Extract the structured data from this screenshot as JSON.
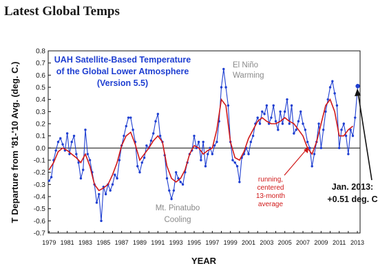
{
  "page": {
    "title": "Latest Global Temps"
  },
  "chart_data": {
    "type": "line",
    "title_lines": [
      "UAH Satellite-Based Temperature",
      "of the Global Lower Atmosphere",
      "(Version 5.5)"
    ],
    "xlabel": "YEAR",
    "ylabel": "T Departure from '81-'10 Avg. (deg. C.)",
    "xlim": [
      1978.9,
      2013.3
    ],
    "ylim": [
      -0.7,
      0.8
    ],
    "y_ticks": [
      -0.7,
      -0.6,
      -0.5,
      -0.4,
      -0.3,
      -0.2,
      -0.1,
      0.0,
      0.1,
      0.2,
      0.3,
      0.4,
      0.5,
      0.6,
      0.7,
      0.8
    ],
    "y_tick_labels": [
      "-0.7",
      "-0.6",
      "-0.5",
      "-0.4",
      "-0.3",
      "-0.2",
      "-0.1",
      "0.0",
      "0.1",
      "0.2",
      "0.3",
      "0.4",
      "0.5",
      "0.6",
      "0.7",
      "0.8"
    ],
    "x_ticks": [
      1979,
      1981,
      1983,
      1985,
      1987,
      1989,
      1991,
      1993,
      1995,
      1997,
      1999,
      2001,
      2003,
      2005,
      2007,
      2009,
      2011,
      2013
    ],
    "x_tick_labels": [
      "1979",
      "1981",
      "1983",
      "1985",
      "1987",
      "1989",
      "1991",
      "1993",
      "1995",
      "1997",
      "1999",
      "2001",
      "2003",
      "2005",
      "2007",
      "2009",
      "2011",
      "2013"
    ],
    "grid": false,
    "zero_line": true,
    "colors": {
      "monthly": "#1f3fd1",
      "smoothed": "#d01818",
      "title": "#1f3fd1",
      "annotation_gray": "#8a8a8a",
      "annotation_red": "#d01818"
    },
    "annotations": {
      "el_nino": [
        "El Niño",
        "Warming"
      ],
      "pinatubo": [
        "Mt. Pinatubo",
        "Cooling"
      ],
      "running": [
        "running,",
        "centered",
        "13-month",
        "average"
      ],
      "latest": [
        "Jan. 2013:",
        "+0.51 deg. C"
      ]
    },
    "latest_point": {
      "x": 2013.04,
      "y": 0.51
    },
    "series": [
      {
        "kind": "monthly",
        "x": [
          1979.0,
          1979.25,
          1979.5,
          1979.75,
          1980.0,
          1980.25,
          1980.5,
          1980.75,
          1981.0,
          1981.25,
          1981.5,
          1981.75,
          1982.0,
          1982.25,
          1982.5,
          1982.75,
          1983.0,
          1983.25,
          1983.5,
          1983.75,
          1984.0,
          1984.25,
          1984.5,
          1984.75,
          1985.0,
          1985.25,
          1985.5,
          1985.75,
          1986.0,
          1986.25,
          1986.5,
          1986.75,
          1987.0,
          1987.25,
          1987.5,
          1987.75,
          1988.0,
          1988.25,
          1988.5,
          1988.75,
          1989.0,
          1989.25,
          1989.5,
          1989.75,
          1990.0,
          1990.25,
          1990.5,
          1990.75,
          1991.0,
          1991.25,
          1991.5,
          1991.75,
          1992.0,
          1992.25,
          1992.5,
          1992.75,
          1993.0,
          1993.25,
          1993.5,
          1993.75,
          1994.0,
          1994.25,
          1994.5,
          1994.75,
          1995.0,
          1995.25,
          1995.5,
          1995.75,
          1996.0,
          1996.25,
          1996.5,
          1996.75,
          1997.0,
          1997.25,
          1997.5,
          1997.75,
          1998.0,
          1998.25,
          1998.5,
          1998.75,
          1999.0,
          1999.25,
          1999.5,
          1999.75,
          2000.0,
          2000.25,
          2000.5,
          2000.75,
          2001.0,
          2001.25,
          2001.5,
          2001.75,
          2002.0,
          2002.25,
          2002.5,
          2002.75,
          2003.0,
          2003.25,
          2003.5,
          2003.75,
          2004.0,
          2004.25,
          2004.5,
          2004.75,
          2005.0,
          2005.25,
          2005.5,
          2005.75,
          2006.0,
          2006.25,
          2006.5,
          2006.75,
          2007.0,
          2007.25,
          2007.5,
          2007.75,
          2008.0,
          2008.25,
          2008.5,
          2008.75,
          2009.0,
          2009.25,
          2009.5,
          2009.75,
          2010.0,
          2010.25,
          2010.5,
          2010.75,
          2011.0,
          2011.25,
          2011.5,
          2011.75,
          2012.0,
          2012.25,
          2012.5,
          2012.75,
          2013.04
        ],
        "y": [
          -0.27,
          -0.24,
          -0.1,
          -0.02,
          0.05,
          0.08,
          0.03,
          -0.02,
          0.12,
          -0.05,
          0.05,
          0.1,
          -0.05,
          -0.12,
          -0.25,
          -0.18,
          0.15,
          -0.05,
          -0.1,
          -0.2,
          -0.3,
          -0.45,
          -0.38,
          -0.6,
          -0.32,
          -0.38,
          -0.3,
          -0.35,
          -0.3,
          -0.22,
          -0.25,
          -0.1,
          0.02,
          0.1,
          0.18,
          0.25,
          0.25,
          0.15,
          0.05,
          -0.15,
          -0.2,
          -0.12,
          -0.08,
          0.02,
          0.0,
          0.06,
          0.12,
          0.22,
          0.28,
          0.1,
          0.05,
          -0.06,
          -0.25,
          -0.35,
          -0.42,
          -0.35,
          -0.2,
          -0.25,
          -0.28,
          -0.3,
          -0.2,
          -0.12,
          -0.05,
          -0.02,
          0.1,
          0.0,
          0.05,
          -0.1,
          0.05,
          -0.15,
          -0.05,
          0.0,
          -0.05,
          0.02,
          0.05,
          0.22,
          0.5,
          0.65,
          0.5,
          0.35,
          0.05,
          -0.1,
          -0.12,
          -0.15,
          -0.28,
          -0.08,
          -0.05,
          0.0,
          -0.05,
          0.05,
          0.1,
          0.2,
          0.25,
          0.2,
          0.3,
          0.28,
          0.35,
          0.2,
          0.25,
          0.35,
          0.22,
          0.15,
          0.3,
          0.2,
          0.3,
          0.4,
          0.2,
          0.35,
          0.12,
          0.15,
          0.22,
          0.3,
          0.2,
          0.15,
          0.05,
          0.0,
          -0.15,
          -0.05,
          0.05,
          0.2,
          0.0,
          0.15,
          0.3,
          0.4,
          0.5,
          0.55,
          0.45,
          0.35,
          0.0,
          0.15,
          0.2,
          0.1,
          -0.05,
          0.15,
          0.1,
          0.25,
          0.51
        ]
      },
      {
        "kind": "smoothed",
        "x": [
          1979.0,
          1979.5,
          1980.0,
          1980.5,
          1981.0,
          1981.5,
          1982.0,
          1982.5,
          1983.0,
          1983.5,
          1984.0,
          1984.5,
          1985.0,
          1985.5,
          1986.0,
          1986.5,
          1987.0,
          1987.5,
          1988.0,
          1988.5,
          1989.0,
          1989.5,
          1990.0,
          1990.5,
          1991.0,
          1991.5,
          1992.0,
          1992.5,
          1993.0,
          1993.5,
          1994.0,
          1994.5,
          1995.0,
          1995.5,
          1996.0,
          1996.5,
          1997.0,
          1997.5,
          1998.0,
          1998.5,
          1999.0,
          1999.5,
          2000.0,
          2000.5,
          2001.0,
          2001.5,
          2002.0,
          2002.5,
          2003.0,
          2003.5,
          2004.0,
          2004.5,
          2005.0,
          2005.5,
          2006.0,
          2006.5,
          2007.0,
          2007.5,
          2008.0,
          2008.5,
          2009.0,
          2009.5,
          2010.0,
          2010.5,
          2011.0,
          2011.5,
          2012.0,
          2012.5
        ],
        "y": [
          -0.18,
          -0.12,
          -0.03,
          0.0,
          -0.02,
          -0.05,
          -0.08,
          -0.12,
          -0.05,
          -0.15,
          -0.3,
          -0.35,
          -0.33,
          -0.3,
          -0.22,
          -0.12,
          0.02,
          0.1,
          0.13,
          0.03,
          -0.1,
          -0.05,
          0.0,
          0.06,
          0.1,
          0.05,
          -0.15,
          -0.25,
          -0.28,
          -0.25,
          -0.18,
          -0.05,
          0.02,
          0.0,
          -0.05,
          -0.02,
          0.0,
          0.15,
          0.4,
          0.35,
          0.05,
          -0.08,
          -0.1,
          -0.03,
          0.08,
          0.15,
          0.22,
          0.25,
          0.22,
          0.2,
          0.2,
          0.22,
          0.25,
          0.22,
          0.2,
          0.15,
          0.1,
          0.0,
          -0.05,
          0.05,
          0.2,
          0.35,
          0.4,
          0.3,
          0.1,
          0.1,
          0.15,
          0.18
        ]
      }
    ]
  }
}
